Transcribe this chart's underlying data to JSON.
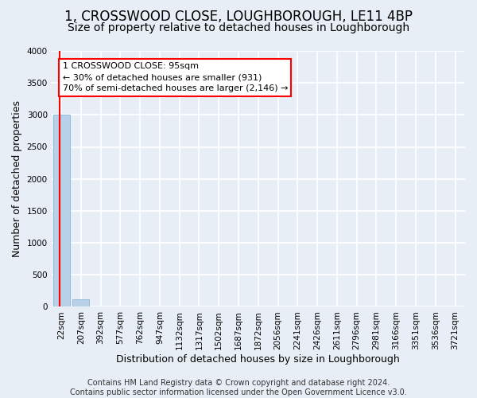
{
  "title": "1, CROSSWOOD CLOSE, LOUGHBOROUGH, LE11 4BP",
  "subtitle": "Size of property relative to detached houses in Loughborough",
  "xlabel": "Distribution of detached houses by size in Loughborough",
  "ylabel": "Number of detached properties",
  "categories": [
    "22sqm",
    "207sqm",
    "392sqm",
    "577sqm",
    "762sqm",
    "947sqm",
    "1132sqm",
    "1317sqm",
    "1502sqm",
    "1687sqm",
    "1872sqm",
    "2056sqm",
    "2241sqm",
    "2426sqm",
    "2611sqm",
    "2796sqm",
    "2981sqm",
    "3166sqm",
    "3351sqm",
    "3536sqm",
    "3721sqm"
  ],
  "values": [
    3000,
    110,
    0,
    0,
    0,
    0,
    0,
    0,
    0,
    0,
    0,
    0,
    0,
    0,
    0,
    0,
    0,
    0,
    0,
    0,
    0
  ],
  "bar_color": "#b8d0e8",
  "bar_edge_color": "#7aafd4",
  "ylim": [
    0,
    4000
  ],
  "yticks": [
    0,
    500,
    1000,
    1500,
    2000,
    2500,
    3000,
    3500,
    4000
  ],
  "annotation_text_line1": "1 CROSSWOOD CLOSE: 95sqm",
  "annotation_text_line2": "← 30% of detached houses are smaller (931)",
  "annotation_text_line3": "70% of semi-detached houses are larger (2,146) →",
  "footer_line1": "Contains HM Land Registry data © Crown copyright and database right 2024.",
  "footer_line2": "Contains public sector information licensed under the Open Government Licence v3.0.",
  "bg_color": "#e8eef5",
  "plot_bg_color": "#e8eef5",
  "grid_color": "white",
  "title_fontsize": 12,
  "subtitle_fontsize": 10,
  "axis_label_fontsize": 9,
  "tick_fontsize": 7.5,
  "footer_fontsize": 7,
  "red_line_color": "red",
  "annotation_box_edge_color": "red",
  "annotation_box_face_color": "white"
}
